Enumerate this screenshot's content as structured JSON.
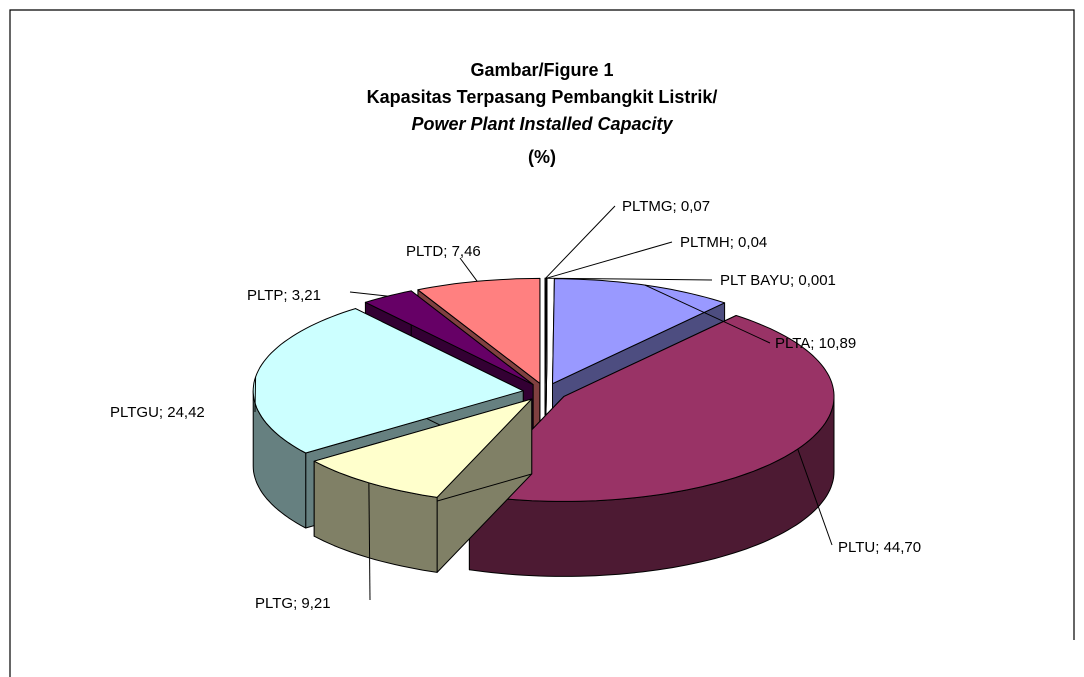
{
  "chart_data": {
    "type": "pie",
    "title": "Gambar/Figure  1",
    "subtitle": "Kapasitas Terpasang Pembangkit Listrik/",
    "subtitle_italic": "Power Plant Installed Capacity",
    "unit_label": "(%)",
    "values": [
      0.07,
      0.04,
      0.001,
      10.89,
      44.7,
      9.21,
      24.42,
      3.21,
      7.46
    ],
    "value_labels": [
      "PLTMG;  0,07",
      "PLTMH;  0,04",
      "PLT BAYU;  0,001",
      "PLTA;  10,89",
      "PLTU;  44,70",
      "PLTG;  9,21",
      "PLTGU;  24,42",
      "PLTP;  3,21",
      "PLTD;  7,46"
    ],
    "colors": [
      "#ffffff",
      "#ffffff",
      "#ffffff",
      "#9999ff",
      "#993366",
      "#ffffcc",
      "#ccffff",
      "#660066",
      "#ff8080"
    ]
  }
}
